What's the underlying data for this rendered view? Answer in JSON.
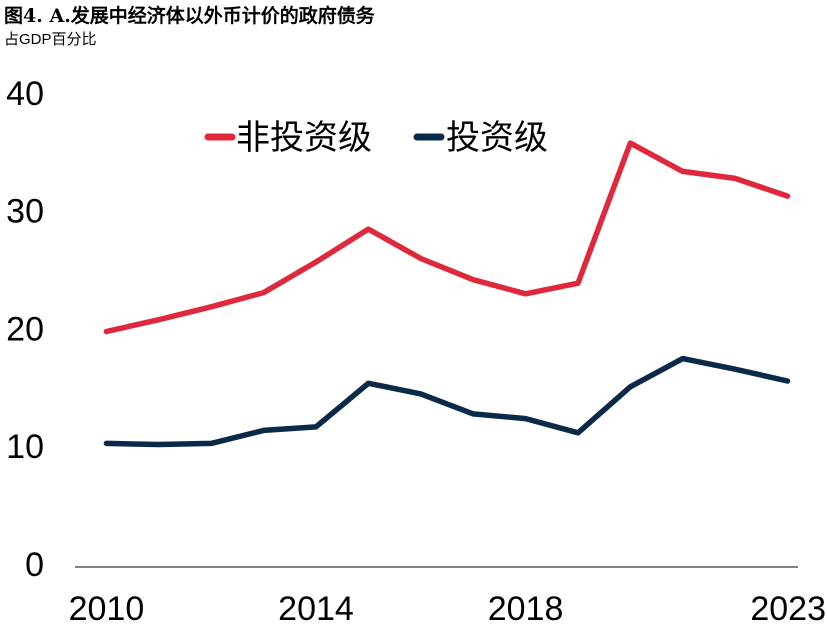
{
  "figure": {
    "title": "图4. A.发展中经济体以外币计价的政府债务",
    "subtitle": "占GDP百分比"
  },
  "colors": {
    "non_investment_grade": "#E0283C",
    "investment_grade": "#0B2A4A"
  },
  "chart_data": {
    "type": "line",
    "x": [
      2010,
      2011,
      2012,
      2013,
      2014,
      2015,
      2016,
      2017,
      2018,
      2019,
      2020,
      2021,
      2022,
      2023
    ],
    "x_tick_labels": [
      "2010",
      "2014",
      "2018",
      "2023"
    ],
    "x_tick_values": [
      2010,
      2014,
      2018,
      2023
    ],
    "y_tick_labels": [
      "0",
      "10",
      "20",
      "30",
      "40"
    ],
    "y_tick_values": [
      0,
      10,
      20,
      30,
      40
    ],
    "ylim": [
      0,
      40
    ],
    "xlim": [
      2009.4,
      2023.2
    ],
    "legend_position": "top-center",
    "series": [
      {
        "name": "非投资级",
        "color": "#E0283C",
        "values": [
          20.0,
          21.0,
          22.1,
          23.3,
          25.9,
          28.7,
          26.2,
          24.4,
          23.2,
          24.1,
          36.0,
          33.6,
          33.0,
          31.5
        ]
      },
      {
        "name": "投资级",
        "color": "#0B2A4A",
        "values": [
          10.5,
          10.4,
          10.5,
          11.6,
          11.9,
          15.6,
          14.7,
          13.0,
          12.6,
          11.4,
          15.3,
          17.7,
          16.8,
          15.8
        ]
      }
    ]
  }
}
